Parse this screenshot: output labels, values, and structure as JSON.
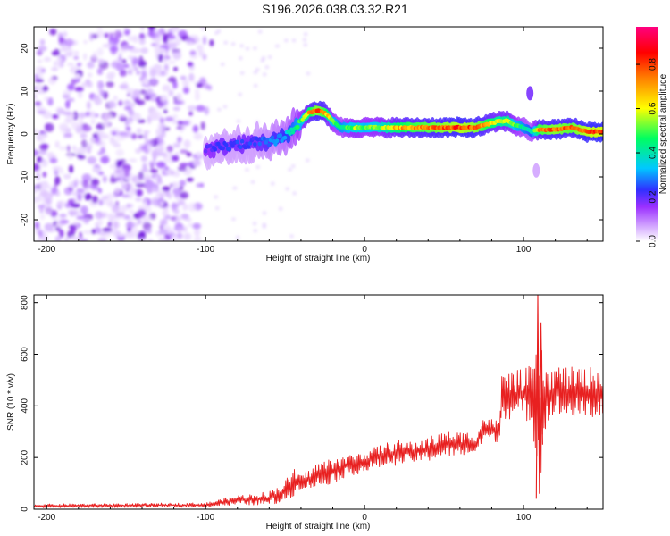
{
  "title": "S196.2026.038.03.32.R21",
  "chart_data": [
    {
      "type": "heatmap",
      "name": "spectrogram",
      "xlabel": "Height of straight line (km)",
      "ylabel": "Frequency (Hz)",
      "xlim": [
        -208,
        150
      ],
      "ylim": [
        -25,
        25
      ],
      "xticks": [
        -200,
        -100,
        0,
        100
      ],
      "yticks": [
        -20,
        -10,
        0,
        10,
        20
      ],
      "colorbar": {
        "label": "Normalized spectral amplitude",
        "range": [
          0.0,
          0.97
        ],
        "ticks": [
          "0.0",
          "0.2",
          "0.4",
          "0.6",
          "0.8"
        ],
        "colors": [
          "#ffffff",
          "#d9b3ff",
          "#9b30ff",
          "#3030ff",
          "#00c8ff",
          "#00ff60",
          "#ffff00",
          "#ff8000",
          "#ff0000",
          "#ff0080"
        ]
      },
      "ridge": {
        "x": [
          -100,
          -90,
          -80,
          -70,
          -60,
          -50,
          -40,
          -35,
          -30,
          -25,
          -20,
          -15,
          -10,
          -5,
          0,
          10,
          20,
          30,
          40,
          50,
          60,
          70,
          80,
          85,
          90,
          95,
          100,
          105,
          110,
          120,
          130,
          140,
          150
        ],
        "y": [
          -4,
          -3,
          -2.5,
          -2,
          -2,
          -0.5,
          3,
          5,
          5.5,
          5,
          3,
          1.5,
          1.5,
          1.5,
          1.5,
          1.5,
          1.5,
          1.5,
          1.5,
          1.5,
          1.5,
          1.5,
          2.5,
          3,
          3,
          2,
          1.5,
          0.5,
          1,
          1,
          1.5,
          0.5,
          0.5
        ],
        "amplitude": [
          0.3,
          0.35,
          0.35,
          0.35,
          0.4,
          0.45,
          0.6,
          0.75,
          0.85,
          0.8,
          0.6,
          0.55,
          0.6,
          0.65,
          0.6,
          0.65,
          0.75,
          0.8,
          0.82,
          0.85,
          0.88,
          0.85,
          0.75,
          0.7,
          0.72,
          0.6,
          0.55,
          0.5,
          0.8,
          0.85,
          0.82,
          0.88,
          0.9
        ]
      },
      "noise_region_x": [
        -208,
        -95
      ],
      "features": [
        {
          "x": 104,
          "y": 9.5,
          "amplitude": 0.25
        },
        {
          "x": 108,
          "y": -8.5,
          "amplitude": 0.12
        }
      ]
    },
    {
      "type": "line",
      "name": "snr",
      "xlabel": "Height of straight line (km)",
      "ylabel": "SNR (10 * v/v)",
      "xlim": [
        -208,
        150
      ],
      "ylim": [
        0,
        830
      ],
      "xticks": [
        -200,
        -100,
        0,
        100
      ],
      "yticks": [
        0,
        200,
        400,
        600,
        800
      ],
      "color": "#e82020",
      "x": [
        -208,
        -180,
        -150,
        -120,
        -100,
        -90,
        -80,
        -70,
        -60,
        -50,
        -45,
        -40,
        -30,
        -20,
        -10,
        0,
        10,
        20,
        30,
        40,
        50,
        60,
        70,
        72,
        75,
        80,
        85,
        86,
        88,
        95,
        100,
        104,
        106,
        108,
        110,
        112,
        115,
        120,
        130,
        140,
        150
      ],
      "y": [
        12,
        13,
        12,
        12,
        18,
        25,
        35,
        35,
        40,
        60,
        100,
        120,
        125,
        150,
        175,
        200,
        210,
        225,
        240,
        255,
        265,
        270,
        272,
        280,
        300,
        310,
        320,
        420,
        440,
        430,
        440,
        450,
        300,
        120,
        600,
        300,
        440,
        445,
        450,
        450,
        455
      ],
      "envelope": {
        "x": [
          -208,
          -100,
          -90,
          -80,
          -70,
          -60,
          -50,
          -45,
          -40,
          -30,
          -20,
          -10,
          0,
          10,
          20,
          30,
          40,
          50,
          60,
          70,
          72,
          75,
          80,
          85,
          86,
          90,
          95,
          100,
          105,
          110,
          115,
          120,
          130,
          140,
          150
        ],
        "upper": [
          20,
          25,
          40,
          55,
          60,
          70,
          110,
          160,
          130,
          180,
          200,
          210,
          230,
          250,
          270,
          260,
          280,
          300,
          300,
          300,
          320,
          360,
          350,
          340,
          520,
          540,
          540,
          540,
          560,
          650,
          540,
          560,
          550,
          550,
          560
        ],
        "lower": [
          5,
          8,
          12,
          15,
          15,
          15,
          25,
          50,
          80,
          80,
          100,
          130,
          140,
          160,
          170,
          180,
          185,
          200,
          205,
          210,
          230,
          270,
          260,
          260,
          350,
          350,
          340,
          350,
          330,
          90,
          340,
          360,
          340,
          350,
          350
        ]
      },
      "spike": {
        "x": [
          108,
          109,
          110,
          111,
          112
        ],
        "y": [
          40,
          830,
          60,
          720,
          250
        ]
      }
    }
  ]
}
